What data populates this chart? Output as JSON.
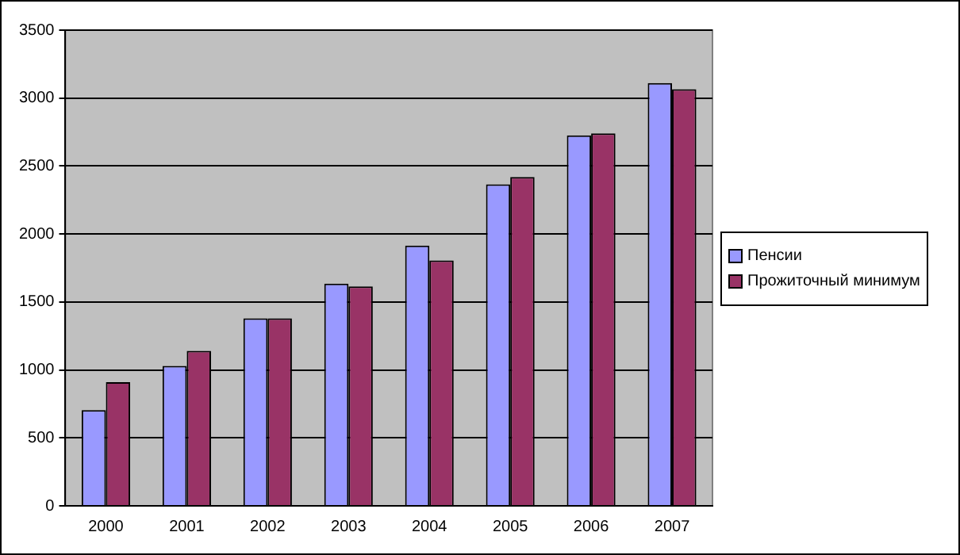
{
  "chart_data": {
    "type": "bar",
    "categories": [
      "2000",
      "2001",
      "2002",
      "2003",
      "2004",
      "2005",
      "2006",
      "2007"
    ],
    "series": [
      {
        "name": "Пенсии",
        "color": "#9999ff",
        "values": [
          705,
          1030,
          1380,
          1635,
          1915,
          2365,
          2725,
          3110
        ]
      },
      {
        "name": "Прожиточный минимум",
        "color": "#993366",
        "values": [
          910,
          1140,
          1380,
          1615,
          1805,
          2420,
          2740,
          3065
        ]
      }
    ],
    "ylim": [
      0,
      3500
    ],
    "yticks": [
      0,
      500,
      1000,
      1500,
      2000,
      2500,
      3000,
      3500
    ],
    "grid": "y",
    "legend": "right"
  }
}
